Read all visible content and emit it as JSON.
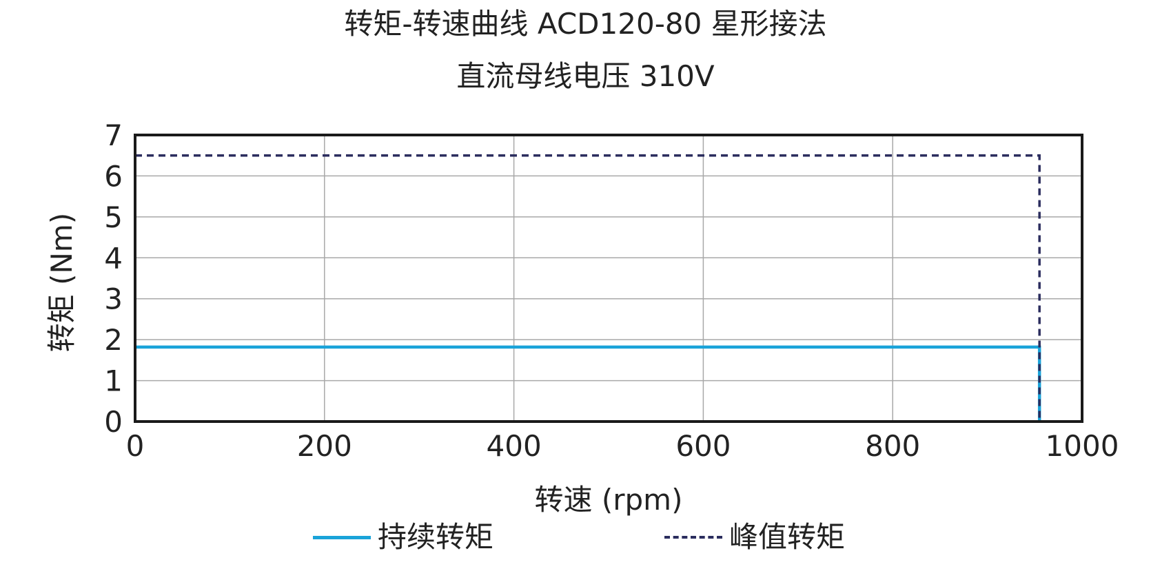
{
  "chart_data": {
    "type": "line",
    "title": "转矩-转速曲线 ACD120-80 星形接法",
    "subtitle": "直流母线电压 310V",
    "xlabel": "转速 (rpm)",
    "ylabel": "转矩 (Nm)",
    "xlim": [
      0,
      1000
    ],
    "ylim": [
      0,
      7
    ],
    "xticks": [
      0,
      200,
      400,
      600,
      800,
      1000
    ],
    "yticks": [
      0,
      1,
      2,
      3,
      4,
      5,
      6,
      7
    ],
    "grid": true,
    "legend_position": "bottom",
    "series": [
      {
        "name": "持续转矩",
        "style": "solid",
        "color": "#1aa3d9",
        "x": [
          0,
          955,
          955
        ],
        "y": [
          1.82,
          1.82,
          0
        ]
      },
      {
        "name": "峰值转矩",
        "style": "dashed",
        "color": "#2b2d5e",
        "x": [
          0,
          955,
          955
        ],
        "y": [
          6.5,
          6.5,
          0
        ]
      }
    ]
  }
}
